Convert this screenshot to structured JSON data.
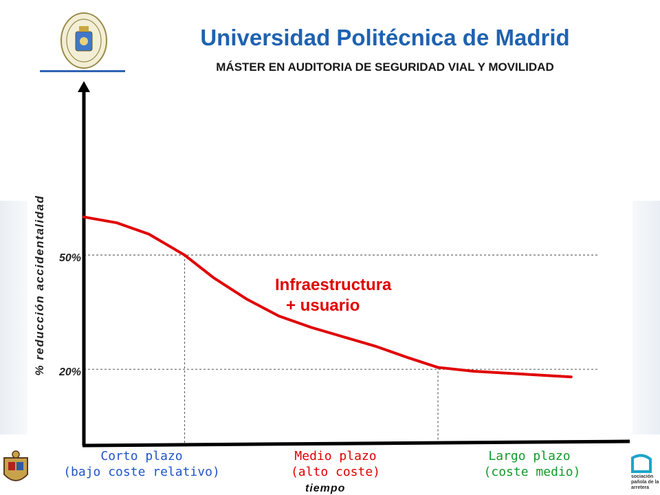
{
  "header": {
    "title": "Universidad Politécnica de Madrid",
    "subtitle": "MÁSTER EN AUDITORIA DE SEGURIDAD VIAL Y MOVILIDAD",
    "accent_color": "#1f62b0",
    "logo_icon": "university-seal-icon"
  },
  "chart_data": {
    "type": "line",
    "title": "",
    "xlabel": "tiempo",
    "ylabel": "% reducción accidentalidad",
    "ylim": [
      0,
      100
    ],
    "yticks": [
      {
        "value": 50,
        "label": "50%"
      },
      {
        "value": 20,
        "label": "20%"
      }
    ],
    "grid": false,
    "reference_lines": [
      {
        "axis": "y",
        "value": 50,
        "style": "dashed"
      },
      {
        "axis": "y",
        "value": 20,
        "style": "dashed"
      },
      {
        "axis": "x",
        "value": 1.55,
        "style": "dashed"
      },
      {
        "axis": "x",
        "value": 5.45,
        "style": "dashed"
      }
    ],
    "phases": [
      {
        "line1": "Corto plazo",
        "line2": "(bajo coste relativo)",
        "color": "#1f55c8"
      },
      {
        "line1": "Medio plazo",
        "line2": "(alto coste)",
        "color": "#e00000"
      },
      {
        "line1": "Largo plazo",
        "line2": "(coste medio)",
        "color": "#129a2a"
      }
    ],
    "series": [
      {
        "line1": "Infraestructura",
        "line2": "+ usuario",
        "color": "#e00000",
        "x": [
          0,
          0.5,
          1.0,
          1.55,
          2.0,
          2.5,
          3.0,
          3.5,
          4.0,
          4.5,
          5.0,
          5.45,
          6.0,
          6.5,
          7.0,
          7.5
        ],
        "y": [
          60,
          58.5,
          55.5,
          50,
          44,
          38.5,
          34,
          31,
          28.5,
          26,
          23,
          20.5,
          19.5,
          19,
          18.5,
          18
        ]
      }
    ],
    "xlim": [
      0,
      8
    ]
  },
  "logos": {
    "left_icon": "coat-of-arms-icon",
    "right_icon": "aec-logo-icon",
    "right_text": [
      "sociación",
      "pañola de la",
      "arretera"
    ]
  }
}
